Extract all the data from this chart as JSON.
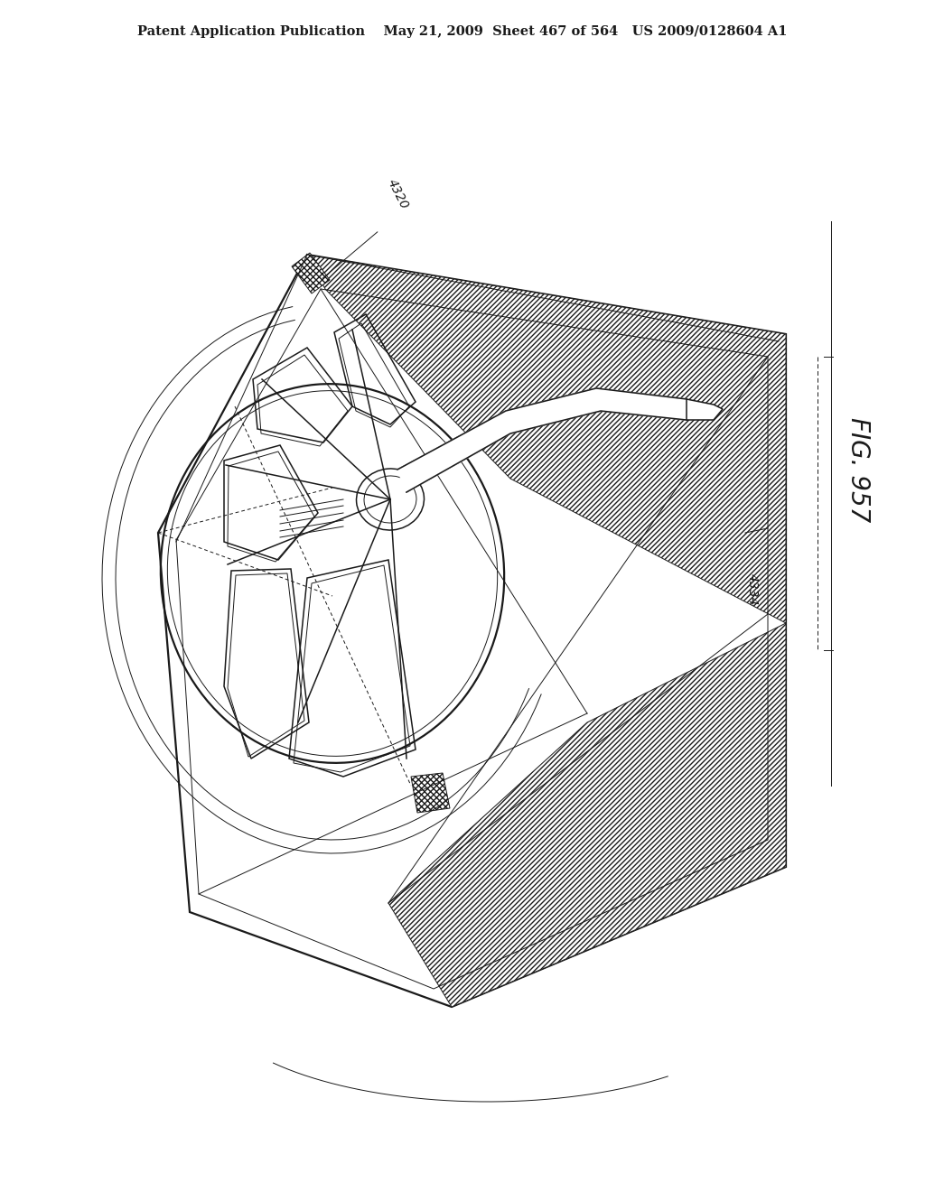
{
  "title_line": "Patent Application Publication    May 21, 2009  Sheet 467 of 564   US 2009/0128604 A1",
  "fig_label": "FIG. 957",
  "ref_4320": "4320",
  "ref_4334": "4334",
  "bg_color": "#ffffff",
  "line_color": "#1a1a1a",
  "title_fontsize": 10.5,
  "annotation_fontsize": 10
}
